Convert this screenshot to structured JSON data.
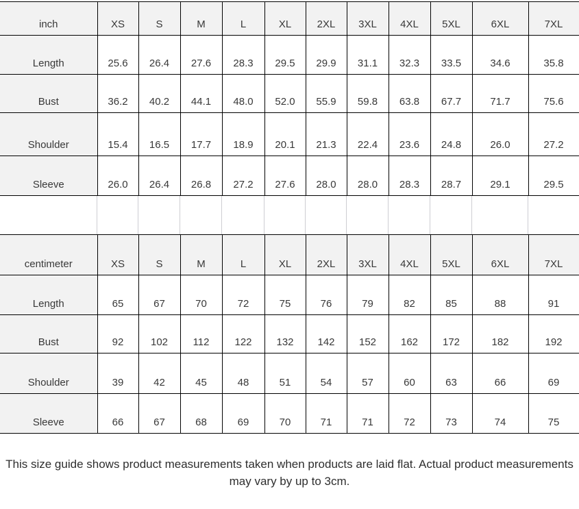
{
  "tables": [
    {
      "id": "inch",
      "unit_label": "inch",
      "sizes": [
        "XS",
        "S",
        "M",
        "L",
        "XL",
        "2XL",
        "3XL",
        "4XL",
        "5XL",
        "6XL",
        "7XL"
      ],
      "rows": [
        {
          "label": "Length",
          "values": [
            "25.6",
            "26.4",
            "27.6",
            "28.3",
            "29.5",
            "29.9",
            "31.1",
            "32.3",
            "33.5",
            "34.6",
            "35.8"
          ]
        },
        {
          "label": "Bust",
          "values": [
            "36.2",
            "40.2",
            "44.1",
            "48.0",
            "52.0",
            "55.9",
            "59.8",
            "63.8",
            "67.7",
            "71.7",
            "75.6"
          ]
        },
        {
          "label": "Shoulder",
          "values": [
            "15.4",
            "16.5",
            "17.7",
            "18.9",
            "20.1",
            "21.3",
            "22.4",
            "23.6",
            "24.8",
            "26.0",
            "27.2"
          ]
        },
        {
          "label": "Sleeve",
          "values": [
            "26.0",
            "26.4",
            "26.8",
            "27.2",
            "27.6",
            "28.0",
            "28.0",
            "28.3",
            "28.7",
            "29.1",
            "29.5"
          ]
        }
      ]
    },
    {
      "id": "centimeter",
      "unit_label": "centimeter",
      "sizes": [
        "XS",
        "S",
        "M",
        "L",
        "XL",
        "2XL",
        "3XL",
        "4XL",
        "5XL",
        "6XL",
        "7XL"
      ],
      "rows": [
        {
          "label": "Length",
          "values": [
            "65",
            "67",
            "70",
            "72",
            "75",
            "76",
            "79",
            "82",
            "85",
            "88",
            "91"
          ]
        },
        {
          "label": "Bust",
          "values": [
            "92",
            "102",
            "112",
            "122",
            "132",
            "142",
            "152",
            "162",
            "172",
            "182",
            "192"
          ]
        },
        {
          "label": "Shoulder",
          "values": [
            "39",
            "42",
            "45",
            "48",
            "51",
            "54",
            "57",
            "60",
            "63",
            "66",
            "69"
          ]
        },
        {
          "label": "Sleeve",
          "values": [
            "66",
            "67",
            "68",
            "69",
            "70",
            "71",
            "71",
            "72",
            "73",
            "74",
            "75"
          ]
        }
      ]
    }
  ],
  "footer": {
    "note": "This size guide shows product measurements taken when products are laid flat. Actual product measurements may vary by up to 3cm."
  },
  "colors": {
    "header_bg": "#f2f2f2",
    "table_border": "#000000",
    "faint_gridline": "#cdcdd2",
    "text": "#383838"
  }
}
